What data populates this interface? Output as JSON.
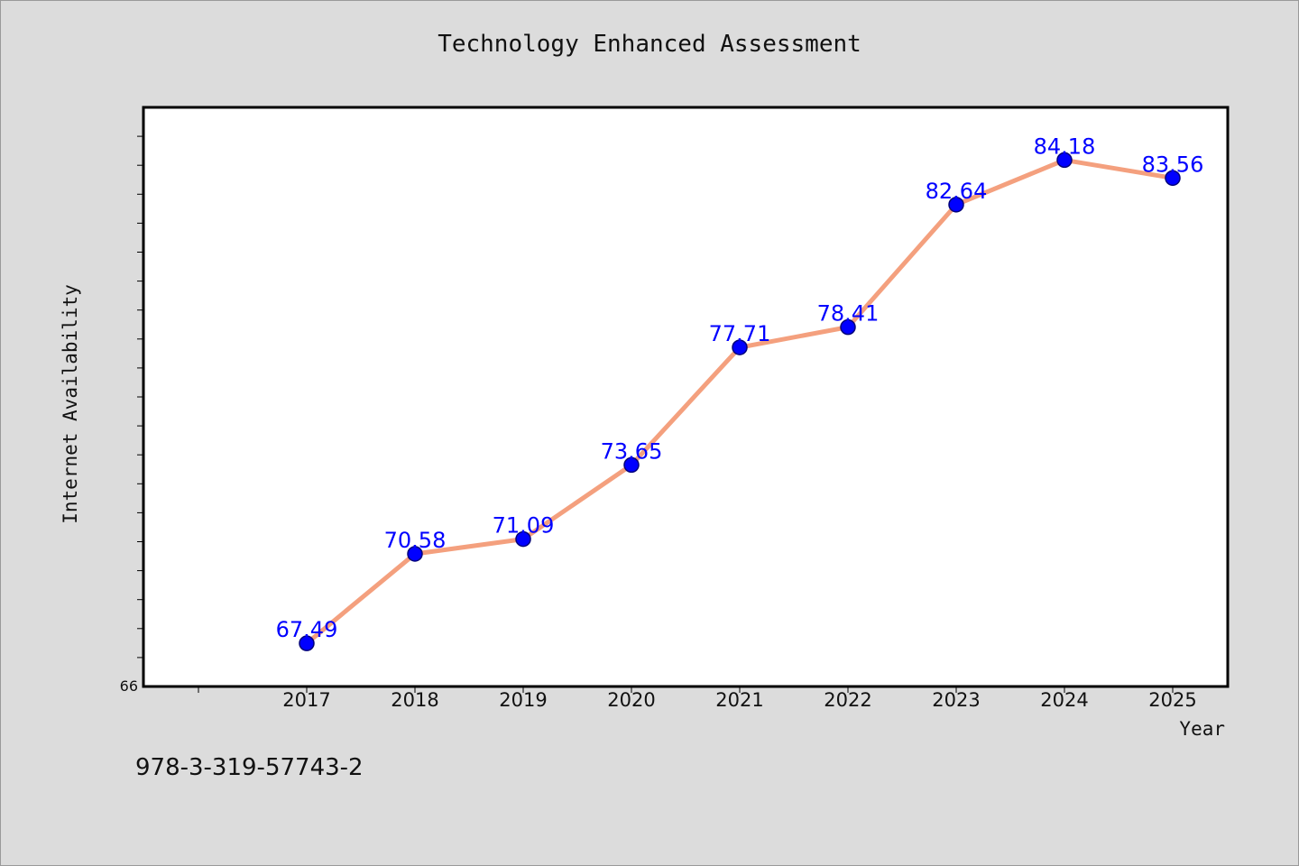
{
  "page": {
    "title": "Technology Enhanced Assessment",
    "footer_code": "978-3-319-57743-2"
  },
  "chart_data": {
    "type": "line",
    "title": "Technology Enhanced Assessment",
    "xlabel": "Year",
    "ylabel": "Internet Availability",
    "x": [
      "2017",
      "2018",
      "2019",
      "2020",
      "2021",
      "2022",
      "2023",
      "2024",
      "2025"
    ],
    "series": [
      {
        "values": [
          67.49,
          70.58,
          71.09,
          73.65,
          77.71,
          78.41,
          82.64,
          84.18,
          83.56
        ],
        "labels": [
          "67.49",
          "70.58",
          "71.09",
          "73.65",
          "77.71",
          "78.41",
          "82.64",
          "84.18",
          "83.56"
        ]
      }
    ],
    "ylim": [
      66,
      86
    ],
    "y_min_label": "66",
    "y_minor_step": 1,
    "grid": false,
    "colors": {
      "line": "#f4a07e",
      "marker": "#0000ff",
      "marker_edge": "#00007a",
      "data_label": "#0000ff",
      "plot_background": "#ffffff",
      "page_background": "#dcdcdc"
    }
  }
}
